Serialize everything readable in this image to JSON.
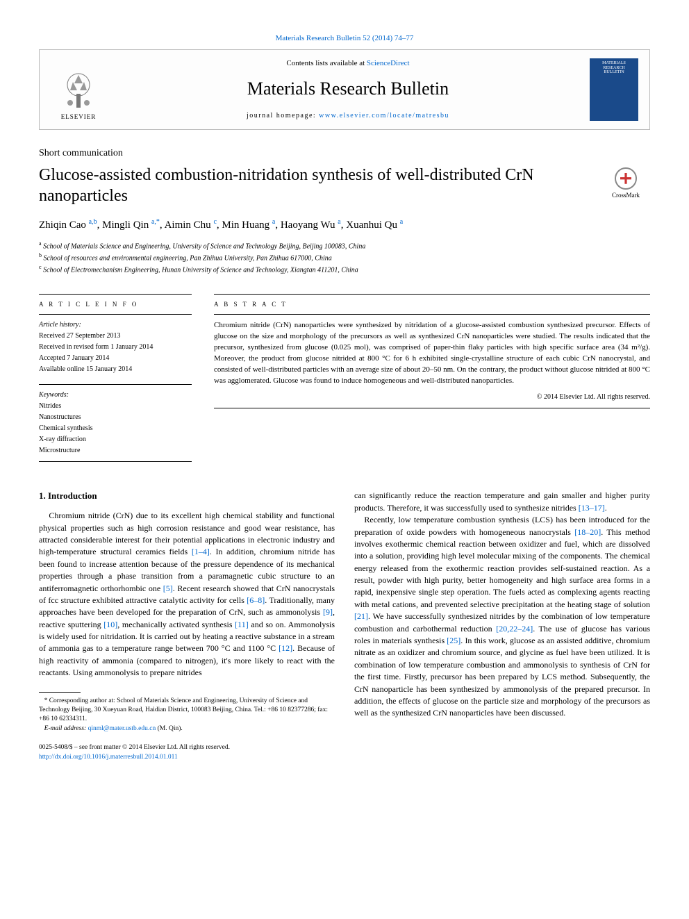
{
  "top_link": {
    "journal": "Materials Research Bulletin 52 (2014) 74–77",
    "href": "#"
  },
  "header": {
    "contents_prefix": "Contents lists available at ",
    "contents_link": "ScienceDirect",
    "journal_name": "Materials Research Bulletin",
    "homepage_prefix": "journal homepage: ",
    "homepage_url": "www.elsevier.com/locate/matresbu",
    "publisher": "ELSEVIER",
    "cover_text": "MATERIALS RESEARCH BULLETIN"
  },
  "article": {
    "type": "Short communication",
    "title": "Glucose-assisted combustion-nitridation synthesis of well-distributed CrN nanoparticles",
    "crossmark": "CrossMark",
    "authors_html": "Zhiqin Cao <span class='sup'>a,b</span>, Mingli Qin <span class='sup'>a,*</span>, Aimin Chu <span class='sup'>c</span>, Min Huang <span class='sup'>a</span>, Haoyang Wu <span class='sup'>a</span>, Xuanhui Qu <span class='sup'>a</span>",
    "affiliations": [
      {
        "sup": "a",
        "text": "School of Materials Science and Engineering, University of Science and Technology Beijing, Beijing 100083, China"
      },
      {
        "sup": "b",
        "text": "School of resources and environmental engineering, Pan Zhihua University, Pan Zhihua 617000, China"
      },
      {
        "sup": "c",
        "text": "School of Electromechanism Engineering, Hunan University of Science and Technology, Xiangtan 411201, China"
      }
    ]
  },
  "article_info": {
    "heading": "A R T I C L E   I N F O",
    "history_label": "Article history:",
    "history": [
      "Received 27 September 2013",
      "Received in revised form 1 January 2014",
      "Accepted 7 January 2014",
      "Available online 15 January 2014"
    ],
    "keywords_label": "Keywords:",
    "keywords": [
      "Nitrides",
      "Nanostructures",
      "Chemical synthesis",
      "X-ray diffraction",
      "Microstructure"
    ]
  },
  "abstract": {
    "heading": "A B S T R A C T",
    "text": "Chromium nitride (CrN) nanoparticles were synthesized by nitridation of a glucose-assisted combustion synthesized precursor. Effects of glucose on the size and morphology of the precursors as well as synthesized CrN nanoparticles were studied. The results indicated that the precursor, synthesized from glucose (0.025 mol), was comprised of paper-thin flaky particles with high specific surface area (34 m²/g). Moreover, the product from glucose nitrided at 800 °C for 6 h exhibited single-crystalline structure of each cubic CrN nanocrystal, and consisted of well-distributed particles with an average size of about 20–50 nm. On the contrary, the product without glucose nitrided at 800 °C was agglomerated. Glucose was found to induce homogeneous and well-distributed nanoparticles.",
    "copyright": "© 2014 Elsevier Ltd. All rights reserved."
  },
  "section1": {
    "heading": "1. Introduction",
    "p1_pre": "Chromium nitride (CrN) due to its excellent high chemical stability and functional physical properties such as high corrosion resistance and good wear resistance, has attracted considerable interest for their potential applications in electronic industry and high-temperature structural ceramics fields ",
    "ref1": "[1–4]",
    "p1_mid1": ". In addition, chromium nitride has been found to increase attention because of the pressure dependence of its mechanical properties through a phase transition from a paramagnetic cubic structure to an antiferromagnetic orthorhombic one ",
    "ref5": "[5]",
    "p1_mid2": ". Recent research showed that CrN nanocrystals of fcc structure exhibited attractive catalytic activity for cells ",
    "ref68": "[6–8]",
    "p1_mid3": ". Traditionally, many approaches have been developed for the preparation of CrN, such as ammonolysis ",
    "ref9": "[9]",
    "p1_mid4": ", reactive sputtering ",
    "ref10": "[10]",
    "p1_mid5": ", mechanically activated synthesis ",
    "ref11": "[11]",
    "p1_mid6": " and so on. Ammonolysis is widely used for nitridation. It is carried out by heating a reactive substance in a stream of ammonia gas to a temperature range between 700 °C and 1100 °C ",
    "ref12": "[12]",
    "p1_end": ". Because of high reactivity of ammonia (compared to nitrogen), it's more likely to react with the reactants. Using ammonolysis to prepare nitrides",
    "p1b_pre": "can significantly reduce the reaction temperature and gain smaller and higher purity products. Therefore, it was successfully used to synthesize nitrides ",
    "ref1317": "[13–17]",
    "p1b_end": ".",
    "p2_pre": "Recently, low temperature combustion synthesis (LCS) has been introduced for the preparation of oxide powders with homogeneous nanocrystals ",
    "ref1820": "[18–20]",
    "p2_mid1": ". This method involves exothermic chemical reaction between oxidizer and fuel, which are dissolved into a solution, providing high level molecular mixing of the components. The chemical energy released from the exothermic reaction provides self-sustained reaction. As a result, powder with high purity, better homogeneity and high surface area forms in a rapid, inexpensive single step operation. The fuels acted as complexing agents reacting with metal cations, and prevented selective precipitation at the heating stage of solution ",
    "ref21": "[21]",
    "p2_mid2": ". We have successfully synthesized nitrides by the combination of low temperature combustion and carbothermal reduction ",
    "ref202224": "[20,22–24]",
    "p2_mid3": ". The use of glucose has various roles in materials synthesis ",
    "ref25": "[25]",
    "p2_end": ". In this work, glucose as an assisted additive, chromium nitrate as an oxidizer and chromium source, and glycine as fuel have been utilized. It is combination of low temperature combustion and ammonolysis to synthesis of CrN for the first time. Firstly, precursor has been prepared by LCS method. Subsequently, the CrN nanoparticle has been synthesized by ammonolysis of the prepared precursor. In addition, the effects of glucose on the particle size and morphology of the precursors as well as the synthesized CrN nanoparticles have been discussed."
  },
  "footnotes": {
    "corr": "* Corresponding author at: School of Materials Science and Engineering, University of Science and Technology Beijing, 30 Xueyuan Road, Haidian District, 100083 Beijing, China. Tel.: +86 10 82377286; fax: +86 10 62334311.",
    "email_label": "E-mail address: ",
    "email": "qinml@mater.ustb.edu.cn",
    "email_suffix": " (M. Qin)."
  },
  "bottom": {
    "issn_line": "0025-5408/$ – see front matter © 2014 Elsevier Ltd. All rights reserved.",
    "doi": "http://dx.doi.org/10.1016/j.materresbull.2014.01.011"
  },
  "colors": {
    "link": "#0066cc",
    "text": "#000000",
    "cover_bg": "#1a4a8a",
    "crossmark_red": "#cc3333"
  }
}
